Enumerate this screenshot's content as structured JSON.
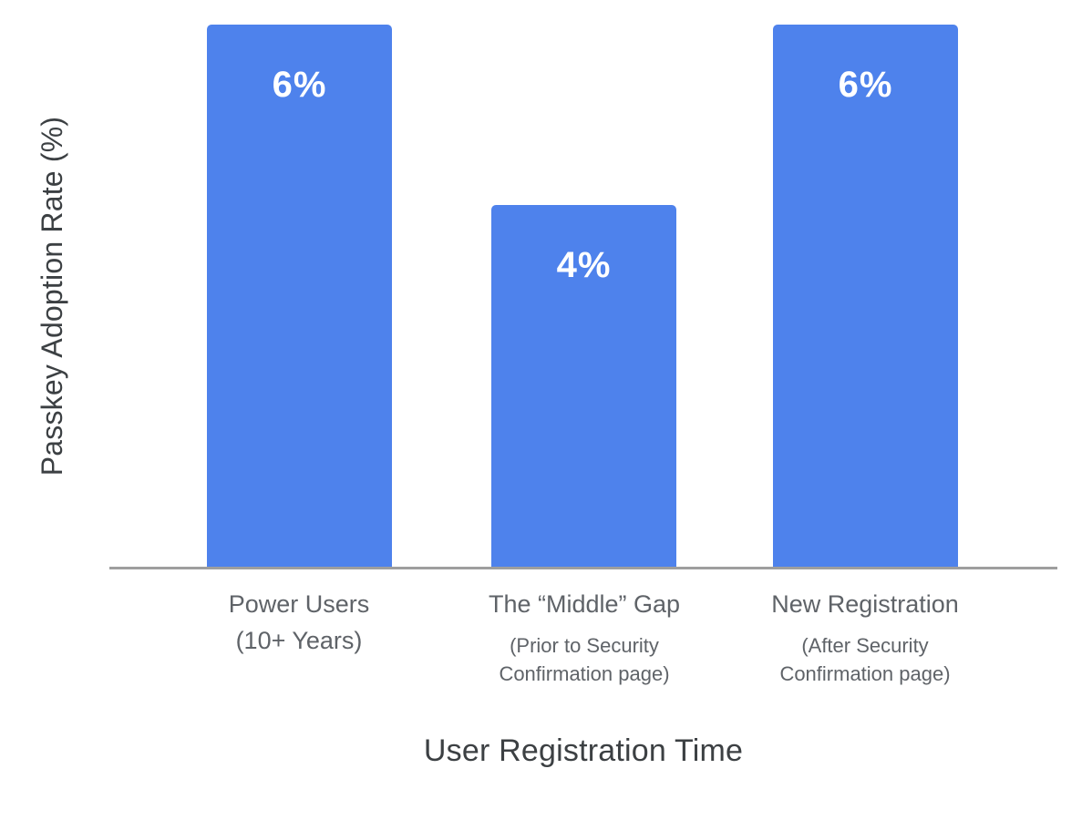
{
  "chart_data": {
    "type": "bar",
    "title": "",
    "xlabel": "User Registration Time",
    "ylabel": "Passkey Adoption Rate (%)",
    "categories": [
      "Power Users",
      "The “Middle” Gap",
      "New Registration"
    ],
    "category_sublabels": [
      "(10+ Years)",
      "(Prior to Security\nConfirmation page)",
      "(After Security\nConfirmation page)"
    ],
    "values": [
      6,
      4,
      6
    ],
    "value_labels": [
      "6%",
      "4%",
      "6%"
    ],
    "ylim": [
      0,
      6.3
    ],
    "grid": false,
    "legend": false,
    "colors": {
      "bar_fill": "#4e82ec",
      "bar_value_text": "#ffffff",
      "axis_line": "#9e9e9e",
      "category_label_text": "#5f6368",
      "axis_title_text": "#3c4043",
      "background": "#ffffff"
    }
  }
}
